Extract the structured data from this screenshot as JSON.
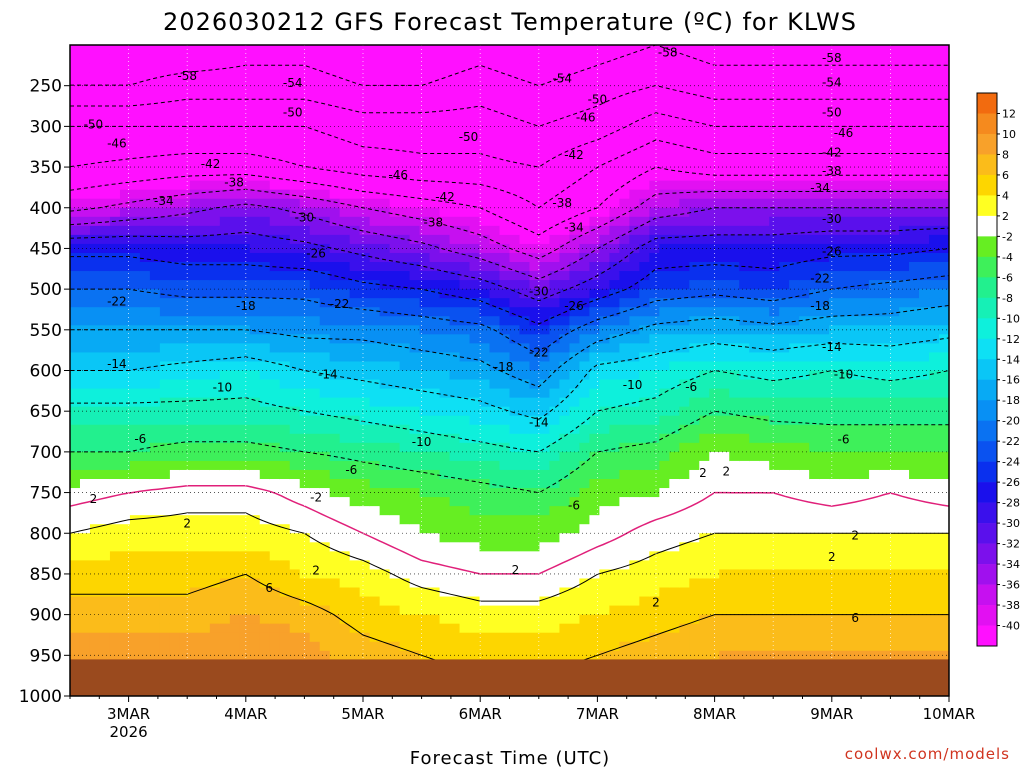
{
  "chart_data": {
    "type": "heatmap",
    "title": "2026030212 GFS Forecast Temperature (ºC) for KLWS",
    "xlabel": "Forecast Time (UTC)",
    "ylabel": "",
    "credit": "coolwx.com/models",
    "x_ticks": [
      {
        "label": "3MAR",
        "sub": "2026",
        "day": 3.0
      },
      {
        "label": "4MAR",
        "sub": "",
        "day": 4.0
      },
      {
        "label": "5MAR",
        "sub": "",
        "day": 5.0
      },
      {
        "label": "6MAR",
        "sub": "",
        "day": 6.0
      },
      {
        "label": "7MAR",
        "sub": "",
        "day": 7.0
      },
      {
        "label": "8MAR",
        "sub": "",
        "day": 8.0
      },
      {
        "label": "9MAR",
        "sub": "",
        "day": 9.0
      },
      {
        "label": "10MAR",
        "sub": "",
        "day": 10.0
      }
    ],
    "xlim_day": [
      2.5,
      10.0
    ],
    "y_ticks": [
      250,
      300,
      350,
      400,
      450,
      500,
      550,
      600,
      650,
      700,
      750,
      800,
      850,
      900,
      950,
      1000
    ],
    "ylim": [
      200,
      1000
    ],
    "y_axis": "pressure (hPa), inverted",
    "colorbar": {
      "ticks": [
        12,
        10,
        8,
        6,
        4,
        2,
        -2,
        -4,
        -6,
        -8,
        -10,
        -12,
        -14,
        -16,
        -18,
        -20,
        -22,
        -24,
        -26,
        -28,
        -30,
        -32,
        -34,
        -36,
        -38,
        -40
      ],
      "bands": [
        {
          "lo": 12,
          "hi": 14,
          "color": "#f26b0f"
        },
        {
          "lo": 10,
          "hi": 12,
          "color": "#f58a1e"
        },
        {
          "lo": 8,
          "hi": 10,
          "color": "#f8a12a"
        },
        {
          "lo": 6,
          "hi": 8,
          "color": "#fbbc1a"
        },
        {
          "lo": 4,
          "hi": 6,
          "color": "#fdd600"
        },
        {
          "lo": 2,
          "hi": 4,
          "color": "#ffff22"
        },
        {
          "lo": -2,
          "hi": 2,
          "color": "#ffffff"
        },
        {
          "lo": -4,
          "hi": -2,
          "color": "#66ee22"
        },
        {
          "lo": -6,
          "hi": -4,
          "color": "#3ef05a"
        },
        {
          "lo": -8,
          "hi": -6,
          "color": "#22f08e"
        },
        {
          "lo": -10,
          "hi": -8,
          "color": "#16f0b6"
        },
        {
          "lo": -12,
          "hi": -10,
          "color": "#0ef0dc"
        },
        {
          "lo": -14,
          "hi": -12,
          "color": "#0ee0f4"
        },
        {
          "lo": -16,
          "hi": -14,
          "color": "#0ac6f6"
        },
        {
          "lo": -18,
          "hi": -16,
          "color": "#08aaf4"
        },
        {
          "lo": -20,
          "hi": -18,
          "color": "#0890f4"
        },
        {
          "lo": -22,
          "hi": -20,
          "color": "#0a72f2"
        },
        {
          "lo": -24,
          "hi": -22,
          "color": "#0a52f0"
        },
        {
          "lo": -26,
          "hi": -24,
          "color": "#0a30ee"
        },
        {
          "lo": -28,
          "hi": -26,
          "color": "#1a10ec"
        },
        {
          "lo": -30,
          "hi": -28,
          "color": "#3a10ec"
        },
        {
          "lo": -32,
          "hi": -30,
          "color": "#5a10ec"
        },
        {
          "lo": -34,
          "hi": -32,
          "color": "#7c10ec"
        },
        {
          "lo": -36,
          "hi": -34,
          "color": "#a010ee"
        },
        {
          "lo": -38,
          "hi": -36,
          "color": "#c610f0"
        },
        {
          "lo": -40,
          "hi": -38,
          "color": "#e210f2"
        },
        {
          "lo": -42,
          "hi": -40,
          "color": "#ff10ff"
        }
      ]
    },
    "ground_pressure": 955,
    "ground_color": "#9a4a1e",
    "freezing_line_color": "#e0207a",
    "profile_levels": [
      200,
      250,
      300,
      350,
      400,
      450,
      500,
      550,
      600,
      650,
      700,
      750,
      800,
      850,
      900,
      950,
      1000
    ],
    "profile_columns": [
      {
        "day": 2.5,
        "temps": [
          -62,
          -58,
          -50,
          -46,
          -39,
          -27,
          -22,
          -18,
          -14,
          -9,
          -6,
          -1,
          2,
          5,
          7,
          9,
          11
        ]
      },
      {
        "day": 3.0,
        "temps": [
          -62,
          -58,
          -50,
          -45,
          -37,
          -27,
          -22,
          -18,
          -14,
          -9,
          -6,
          0,
          3,
          5,
          7,
          9,
          11
        ]
      },
      {
        "day": 3.5,
        "temps": [
          -62,
          -56,
          -50,
          -44,
          -35,
          -28,
          -23,
          -18,
          -13,
          -9,
          -5,
          1,
          3,
          5,
          7,
          9,
          11
        ]
      },
      {
        "day": 4.0,
        "temps": [
          -60,
          -56,
          -50,
          -44,
          -33,
          -28,
          -23,
          -18,
          -12,
          -9,
          -5,
          1,
          3,
          6,
          8,
          10,
          12
        ]
      },
      {
        "day": 4.5,
        "temps": [
          -60,
          -56,
          -50,
          -46,
          -35,
          -29,
          -23,
          -19,
          -14,
          -10,
          -6,
          -1,
          2,
          4,
          7,
          9,
          11
        ]
      },
      {
        "day": 5.0,
        "temps": [
          -62,
          -58,
          -52,
          -48,
          -38,
          -31,
          -25,
          -19,
          -15,
          -11,
          -7,
          -3,
          0,
          3,
          5,
          7,
          9
        ]
      },
      {
        "day": 5.5,
        "temps": [
          -62,
          -58,
          -52,
          -49,
          -40,
          -33,
          -26,
          -20,
          -16,
          -12,
          -8,
          -4,
          -2,
          1,
          4,
          6,
          8
        ]
      },
      {
        "day": 6.0,
        "temps": [
          -60,
          -56,
          -52,
          -49,
          -42,
          -36,
          -28,
          -21,
          -17,
          -13,
          -9,
          -5,
          -3,
          0,
          3,
          5,
          7
        ]
      },
      {
        "day": 6.5,
        "temps": [
          -62,
          -58,
          -54,
          -50,
          -46,
          -40,
          -32,
          -25,
          -20,
          -15,
          -10,
          -6,
          -3,
          0,
          3,
          5,
          7
        ]
      },
      {
        "day": 7.0,
        "temps": [
          -60,
          -56,
          -52,
          -46,
          -42,
          -34,
          -28,
          -20,
          -13,
          -10,
          -6,
          -3,
          -1,
          2,
          4,
          6,
          8
        ]
      },
      {
        "day": 7.5,
        "temps": [
          -58,
          -54,
          -48,
          -42,
          -36,
          -28,
          -24,
          -17,
          -12,
          -9,
          -5,
          -2,
          1,
          3,
          5,
          7,
          9
        ]
      },
      {
        "day": 8.0,
        "temps": [
          -60,
          -56,
          -50,
          -44,
          -34,
          -28,
          -23,
          -16,
          -10,
          -6,
          -2,
          0,
          2,
          4,
          6,
          8,
          10
        ]
      },
      {
        "day": 8.5,
        "temps": [
          -60,
          -56,
          -50,
          -44,
          -34,
          -28,
          -24,
          -17,
          -11,
          -7,
          -3,
          0,
          2,
          4,
          6,
          8,
          10
        ]
      },
      {
        "day": 9.0,
        "temps": [
          -60,
          -56,
          -50,
          -44,
          -34,
          -27,
          -22,
          -16,
          -10,
          -7,
          -4,
          -1,
          2,
          4,
          6,
          8,
          10
        ]
      },
      {
        "day": 9.5,
        "temps": [
          -60,
          -56,
          -50,
          -44,
          -34,
          -27,
          -21,
          -16,
          -11,
          -7,
          -4,
          0,
          2,
          4,
          6,
          8,
          10
        ]
      },
      {
        "day": 10.0,
        "temps": [
          -60,
          -56,
          -50,
          -44,
          -34,
          -26,
          -20,
          -15,
          -10,
          -7,
          -4,
          -1,
          2,
          4,
          6,
          8,
          10
        ]
      }
    ],
    "contour_levels": [
      -58,
      -54,
      -50,
      -46,
      -42,
      -38,
      -34,
      -30,
      -26,
      -22,
      -18,
      -14,
      -10,
      -6,
      2,
      6
    ],
    "contour_labels": [
      {
        "text": "-58",
        "day": 3.5,
        "p": 238
      },
      {
        "text": "-54",
        "day": 4.4,
        "p": 247
      },
      {
        "text": "-50",
        "day": 4.4,
        "p": 283
      },
      {
        "text": "-50",
        "day": 2.7,
        "p": 298
      },
      {
        "text": "-46",
        "day": 2.9,
        "p": 321
      },
      {
        "text": "-42",
        "day": 3.7,
        "p": 346
      },
      {
        "text": "-38",
        "day": 3.9,
        "p": 369
      },
      {
        "text": "-34",
        "day": 3.3,
        "p": 392
      },
      {
        "text": "-30",
        "day": 4.5,
        "p": 412
      },
      {
        "text": "-26",
        "day": 4.6,
        "p": 456
      },
      {
        "text": "-22",
        "day": 2.9,
        "p": 515
      },
      {
        "text": "-18",
        "day": 4.0,
        "p": 521
      },
      {
        "text": "-22",
        "day": 4.8,
        "p": 518
      },
      {
        "text": "-14",
        "day": 2.9,
        "p": 592
      },
      {
        "text": "-14",
        "day": 4.7,
        "p": 605
      },
      {
        "text": "-10",
        "day": 3.8,
        "p": 621
      },
      {
        "text": "-6",
        "day": 3.1,
        "p": 684
      },
      {
        "text": "-10",
        "day": 5.5,
        "p": 688
      },
      {
        "text": "-6",
        "day": 4.9,
        "p": 722
      },
      {
        "text": "-2",
        "day": 4.6,
        "p": 756
      },
      {
        "text": "2",
        "day": 2.7,
        "p": 758
      },
      {
        "text": "2",
        "day": 3.5,
        "p": 788
      },
      {
        "text": "6",
        "day": 4.2,
        "p": 867
      },
      {
        "text": "2",
        "day": 4.6,
        "p": 846
      },
      {
        "text": "-58",
        "day": 7.6,
        "p": 209
      },
      {
        "text": "-54",
        "day": 6.7,
        "p": 241
      },
      {
        "text": "-50",
        "day": 7.0,
        "p": 267
      },
      {
        "text": "-46",
        "day": 6.9,
        "p": 289
      },
      {
        "text": "-50",
        "day": 5.9,
        "p": 313
      },
      {
        "text": "-42",
        "day": 6.8,
        "p": 335
      },
      {
        "text": "-46",
        "day": 5.3,
        "p": 360
      },
      {
        "text": "-42",
        "day": 5.7,
        "p": 387
      },
      {
        "text": "-38",
        "day": 5.6,
        "p": 418
      },
      {
        "text": "-38",
        "day": 6.7,
        "p": 394
      },
      {
        "text": "-34",
        "day": 6.8,
        "p": 424
      },
      {
        "text": "-30",
        "day": 6.5,
        "p": 503
      },
      {
        "text": "-26",
        "day": 6.8,
        "p": 521
      },
      {
        "text": "-22",
        "day": 6.5,
        "p": 578
      },
      {
        "text": "-18",
        "day": 6.2,
        "p": 596
      },
      {
        "text": "-14",
        "day": 6.5,
        "p": 664
      },
      {
        "text": "-10",
        "day": 7.3,
        "p": 618
      },
      {
        "text": "-6",
        "day": 7.8,
        "p": 620
      },
      {
        "text": "-6",
        "day": 6.8,
        "p": 766
      },
      {
        "text": "2",
        "day": 6.3,
        "p": 845
      },
      {
        "text": "2",
        "day": 7.5,
        "p": 885
      },
      {
        "text": "2",
        "day": 7.9,
        "p": 726
      },
      {
        "text": "2",
        "day": 8.1,
        "p": 724
      },
      {
        "text": "-58",
        "day": 9.0,
        "p": 216
      },
      {
        "text": "-54",
        "day": 9.0,
        "p": 246
      },
      {
        "text": "-50",
        "day": 9.0,
        "p": 283
      },
      {
        "text": "-46",
        "day": 9.1,
        "p": 308
      },
      {
        "text": "-42",
        "day": 9.0,
        "p": 332
      },
      {
        "text": "-38",
        "day": 9.0,
        "p": 355
      },
      {
        "text": "-34",
        "day": 8.9,
        "p": 376
      },
      {
        "text": "-30",
        "day": 9.0,
        "p": 414
      },
      {
        "text": "-26",
        "day": 9.0,
        "p": 454
      },
      {
        "text": "-22",
        "day": 8.9,
        "p": 487
      },
      {
        "text": "-18",
        "day": 8.9,
        "p": 521
      },
      {
        "text": "-14",
        "day": 9.0,
        "p": 571
      },
      {
        "text": "-10",
        "day": 9.1,
        "p": 605
      },
      {
        "text": "-6",
        "day": 9.1,
        "p": 685
      },
      {
        "text": "2",
        "day": 9.2,
        "p": 803
      },
      {
        "text": "2",
        "day": 9.0,
        "p": 829
      },
      {
        "text": "6",
        "day": 9.2,
        "p": 904
      }
    ]
  }
}
